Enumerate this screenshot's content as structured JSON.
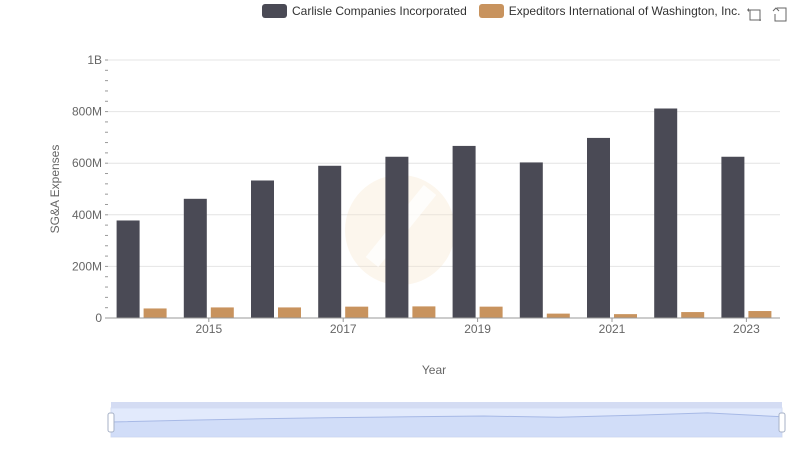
{
  "chart_data": {
    "type": "bar",
    "xlabel": "Year",
    "ylabel": "SG&A Expenses",
    "categories": [
      "2014",
      "2015",
      "2016",
      "2017",
      "2018",
      "2019",
      "2020",
      "2021",
      "2022",
      "2023"
    ],
    "x_tick_labels": [
      "2015",
      "2017",
      "2019",
      "2021",
      "2023"
    ],
    "y_tick_labels": [
      "0",
      "200M",
      "400M",
      "600M",
      "800M",
      "1B"
    ],
    "ylim": [
      0,
      1000000000
    ],
    "grid": true,
    "legend_position": "top",
    "series": [
      {
        "name": "Carlisle Companies Incorporated",
        "color": "#4a4a55",
        "values": [
          378000000,
          462000000,
          533000000,
          590000000,
          625000000,
          667000000,
          603000000,
          698000000,
          812000000,
          625000000
        ]
      },
      {
        "name": "Expeditors International of Washington, Inc.",
        "color": "#c8935e",
        "values": [
          37000000,
          41000000,
          41000000,
          44000000,
          45000000,
          44000000,
          17000000,
          15000000,
          23000000,
          27000000
        ]
      }
    ]
  },
  "toolbox": {
    "zoom_icon": "zoom-icon",
    "restore_icon": "restore-icon"
  }
}
